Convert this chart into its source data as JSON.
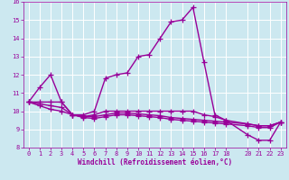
{
  "background_color": "#cce8f0",
  "grid_color": "#ffffff",
  "line_color": "#990099",
  "xlabel": "Windchill (Refroidissement éolien,°C)",
  "xlim": [
    -0.5,
    23.5
  ],
  "ylim": [
    8,
    16
  ],
  "yticks": [
    8,
    9,
    10,
    11,
    12,
    13,
    14,
    15,
    16
  ],
  "xticks": [
    0,
    1,
    2,
    3,
    4,
    5,
    6,
    7,
    8,
    9,
    10,
    11,
    12,
    13,
    14,
    15,
    16,
    17,
    18,
    20,
    21,
    22,
    23
  ],
  "curves": [
    {
      "x": [
        0,
        1,
        2,
        3,
        4,
        5,
        6,
        7,
        8,
        9,
        10,
        11,
        12,
        13,
        14,
        15,
        16,
        17,
        18,
        20,
        21,
        22,
        23
      ],
      "y": [
        10.5,
        11.3,
        12.0,
        10.5,
        9.8,
        9.8,
        10.0,
        11.8,
        12.0,
        12.1,
        13.0,
        13.1,
        14.0,
        14.9,
        15.0,
        15.7,
        12.7,
        9.8,
        9.5,
        8.7,
        8.4,
        8.4,
        9.4
      ]
    },
    {
      "x": [
        0,
        1,
        2,
        3,
        4,
        5,
        6,
        7,
        8,
        9,
        10,
        11,
        12,
        13,
        14,
        15,
        16,
        17,
        18,
        20,
        21,
        22,
        23
      ],
      "y": [
        10.5,
        10.5,
        10.5,
        10.5,
        9.8,
        9.7,
        9.8,
        10.0,
        10.0,
        10.0,
        10.0,
        10.0,
        10.0,
        10.0,
        10.0,
        10.0,
        9.8,
        9.7,
        9.5,
        9.3,
        9.2,
        9.2,
        9.4
      ]
    },
    {
      "x": [
        0,
        1,
        2,
        3,
        4,
        5,
        6,
        7,
        8,
        9,
        10,
        11,
        12,
        13,
        14,
        15,
        16,
        17,
        18,
        20,
        21,
        22,
        23
      ],
      "y": [
        10.5,
        10.4,
        10.3,
        10.2,
        9.8,
        9.7,
        9.7,
        9.8,
        9.9,
        9.9,
        9.85,
        9.8,
        9.75,
        9.65,
        9.6,
        9.55,
        9.5,
        9.45,
        9.4,
        9.3,
        9.2,
        9.2,
        9.4
      ]
    },
    {
      "x": [
        0,
        1,
        2,
        3,
        4,
        5,
        6,
        7,
        8,
        9,
        10,
        11,
        12,
        13,
        14,
        15,
        16,
        17,
        18,
        20,
        21,
        22,
        23
      ],
      "y": [
        10.5,
        10.3,
        10.1,
        10.0,
        9.8,
        9.65,
        9.6,
        9.7,
        9.8,
        9.8,
        9.75,
        9.7,
        9.65,
        9.55,
        9.5,
        9.45,
        9.4,
        9.35,
        9.3,
        9.2,
        9.1,
        9.1,
        9.4
      ]
    }
  ],
  "marker": "+",
  "markersize": 4,
  "linewidth": 1.0
}
